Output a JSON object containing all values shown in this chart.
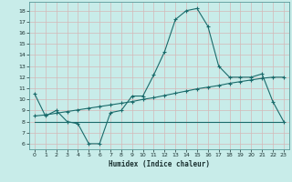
{
  "xlabel": "Humidex (Indice chaleur)",
  "bg_color": "#c8ece9",
  "grid_color": "#d4b8b8",
  "line_color": "#1a6b6b",
  "xlim": [
    -0.5,
    23.5
  ],
  "ylim": [
    5.5,
    18.8
  ],
  "xticks": [
    0,
    1,
    2,
    3,
    4,
    5,
    6,
    7,
    8,
    9,
    10,
    11,
    12,
    13,
    14,
    15,
    16,
    17,
    18,
    19,
    20,
    21,
    22,
    23
  ],
  "yticks": [
    6,
    7,
    8,
    9,
    10,
    11,
    12,
    13,
    14,
    15,
    16,
    17,
    18
  ],
  "line1_x": [
    0,
    1,
    2,
    3,
    4,
    5,
    6,
    7,
    8,
    9,
    10,
    11,
    12,
    13,
    14,
    15,
    16,
    17,
    18,
    19,
    20,
    21,
    22,
    23
  ],
  "line1_y": [
    10.5,
    8.5,
    9.0,
    8.0,
    7.8,
    6.0,
    6.0,
    8.8,
    9.0,
    10.3,
    10.3,
    12.2,
    14.3,
    17.2,
    18.0,
    18.2,
    16.6,
    13.0,
    12.0,
    12.0,
    12.0,
    12.3,
    9.8,
    8.0
  ],
  "line2_x": [
    0,
    23
  ],
  "line2_y": [
    8.0,
    8.0
  ],
  "line3_x": [
    0,
    1,
    2,
    3,
    4,
    5,
    6,
    7,
    8,
    9,
    10,
    11,
    12,
    13,
    14,
    15,
    16,
    17,
    18,
    19,
    20,
    21,
    22,
    23
  ],
  "line3_y": [
    8.5,
    8.6,
    8.75,
    8.9,
    9.05,
    9.2,
    9.35,
    9.5,
    9.65,
    9.8,
    10.0,
    10.15,
    10.35,
    10.55,
    10.75,
    10.95,
    11.1,
    11.25,
    11.45,
    11.6,
    11.75,
    11.9,
    12.0,
    12.0
  ]
}
